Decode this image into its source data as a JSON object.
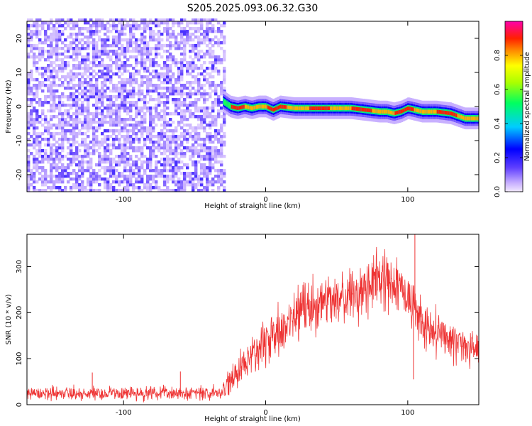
{
  "title": "S205.2025.093.06.32.G30",
  "chart_data": [
    {
      "type": "heatmap",
      "title": "S205.2025.093.06.32.G30",
      "xlabel": "Height of straight line (km)",
      "ylabel": "Frequency (Hz)",
      "xlim": [
        -168,
        150
      ],
      "ylim": [
        -25,
        25
      ],
      "xticks": [
        -100,
        0,
        100
      ],
      "yticks": [
        -20,
        -10,
        0,
        10,
        20
      ],
      "colorbar": {
        "label": "Normalized spectral amplitude",
        "range": [
          0,
          1
        ],
        "ticks": [
          "0.0",
          "0.2",
          "0.4",
          "0.6",
          "0.8"
        ],
        "colormap": "rainbow (magenta-white at 0, blue, cyan, green, yellow, red, magenta at 1)"
      },
      "noise_region": {
        "x_range": [
          -168,
          -30
        ],
        "level": "low (~0.05-0.2)",
        "colors": "white / light-violet speckle"
      },
      "ridge": {
        "description": "narrow spectral peak near 0 Hz for heights above about -30 km",
        "x": [
          -30,
          -25,
          -20,
          -15,
          -10,
          -5,
          0,
          5,
          10,
          20,
          30,
          40,
          50,
          60,
          70,
          80,
          85,
          90,
          95,
          100,
          110,
          120,
          130,
          140,
          150
        ],
        "freq_hz": [
          1.5,
          0.0,
          -0.5,
          0.0,
          -0.5,
          0.0,
          0.0,
          -1.0,
          0.0,
          -0.5,
          -0.5,
          -0.5,
          -0.5,
          -0.5,
          -1.0,
          -1.5,
          -1.5,
          -2.0,
          -1.5,
          -0.5,
          -1.5,
          -1.5,
          -2.0,
          -3.5,
          -3.5
        ],
        "peak_amplitude": 0.9
      }
    },
    {
      "type": "line",
      "xlabel": "Height of straight line (km)",
      "ylabel": "SNR (10 * v/v)",
      "xlim": [
        -168,
        150
      ],
      "ylim": [
        0,
        370
      ],
      "xticks": [
        -100,
        0,
        100
      ],
      "yticks": [
        0,
        100,
        200,
        300
      ],
      "color": "#ee3333",
      "trend": {
        "x": [
          -168,
          -130,
          -100,
          -60,
          -30,
          -20,
          -10,
          0,
          10,
          20,
          30,
          40,
          50,
          60,
          70,
          80,
          85,
          90,
          95,
          100,
          105,
          110,
          120,
          130,
          140,
          150
        ],
        "snr": [
          25,
          25,
          25,
          25,
          25,
          70,
          110,
          140,
          160,
          190,
          210,
          220,
          225,
          235,
          250,
          265,
          275,
          270,
          255,
          235,
          205,
          180,
          160,
          140,
          125,
          115
        ]
      },
      "noise_amplitude": "±15 below -30 km; ±30 above",
      "spikes": [
        {
          "x": -122,
          "snr": 70
        },
        {
          "x": -60,
          "snr": 72
        },
        {
          "x": 105,
          "snr": 370
        },
        {
          "x": 104,
          "snr": 55
        }
      ]
    }
  ]
}
